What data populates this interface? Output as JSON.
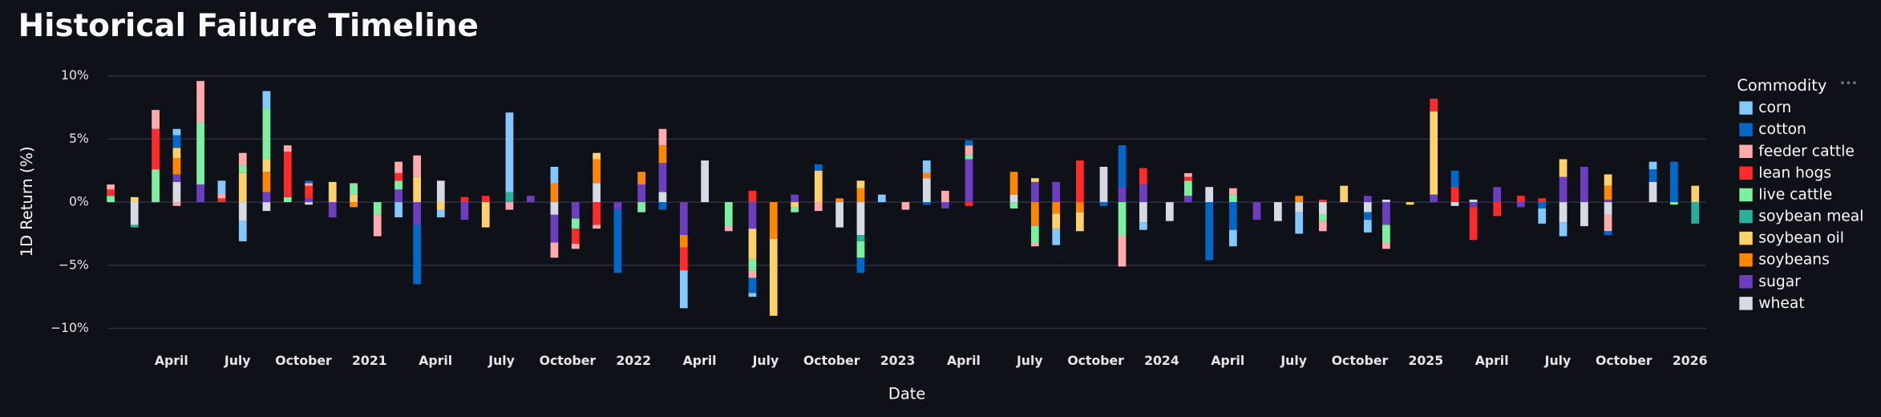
{
  "chart_data": {
    "type": "bar",
    "title": "Historical Failure Timeline",
    "x_label": "Date",
    "y_label": "1D Return (%)",
    "legend_title": "Commodity",
    "legend_position": "right",
    "stacked": true,
    "grid": true,
    "xlim": [
      2020.01,
      2026.06
    ],
    "xticks": [
      {
        "value": 2020.25,
        "label": "April"
      },
      {
        "value": 2020.5,
        "label": "July"
      },
      {
        "value": 2020.75,
        "label": "October"
      },
      2021,
      {
        "value": 2021.25,
        "label": "April"
      },
      {
        "value": 2021.5,
        "label": "July"
      },
      {
        "value": 2021.75,
        "label": "October"
      },
      2022,
      {
        "value": 2022.25,
        "label": "April"
      },
      {
        "value": 2022.5,
        "label": "July"
      },
      {
        "value": 2022.75,
        "label": "October"
      },
      2023,
      {
        "value": 2023.25,
        "label": "April"
      },
      {
        "value": 2023.5,
        "label": "July"
      },
      {
        "value": 2023.75,
        "label": "October"
      },
      2024,
      {
        "value": 2024.25,
        "label": "April"
      },
      {
        "value": 2024.5,
        "label": "July"
      },
      {
        "value": 2024.75,
        "label": "October"
      },
      2025,
      {
        "value": 2025.25,
        "label": "April"
      },
      {
        "value": 2025.5,
        "label": "July"
      },
      {
        "value": 2025.75,
        "label": "October"
      },
      2026
    ],
    "ylim": [
      -10.5,
      10.5
    ],
    "yticks": [
      {
        "value": 10,
        "label": "10%"
      },
      {
        "value": 5,
        "label": "5%"
      },
      {
        "value": 0,
        "label": "0%"
      },
      {
        "value": -5,
        "label": "−5%"
      },
      {
        "value": -10,
        "label": "−10%"
      }
    ],
    "x": [
      2020.02,
      2020.11,
      2020.19,
      2020.27,
      2020.36,
      2020.44,
      2020.52,
      2020.61,
      2020.69,
      2020.77,
      2020.86,
      2020.94,
      2021.03,
      2021.11,
      2021.18,
      2021.27,
      2021.36,
      2021.44,
      2021.53,
      2021.61,
      2021.7,
      2021.78,
      2021.86,
      2021.94,
      2022.03,
      2022.11,
      2022.19,
      2022.27,
      2022.36,
      2022.45,
      2022.53,
      2022.61,
      2022.7,
      2022.78,
      2022.86,
      2022.94,
      2023.03,
      2023.11,
      2023.18,
      2023.27,
      2023.44,
      2023.52,
      2023.6,
      2023.69,
      2023.78,
      2023.85,
      2023.93,
      2024.03,
      2024.1,
      2024.18,
      2024.27,
      2024.36,
      2024.44,
      2024.52,
      2024.61,
      2024.69,
      2024.78,
      2024.85,
      2024.94,
      2025.03,
      2025.11,
      2025.18,
      2025.27,
      2025.36,
      2025.44,
      2025.52,
      2025.6,
      2025.69,
      2025.86,
      2025.94,
      2026.02
    ],
    "series": [
      {
        "name": "corn",
        "color": "#83c9ff",
        "values": [
          null,
          null,
          null,
          0.5,
          null,
          1.0,
          -1.6,
          1.4,
          null,
          null,
          null,
          null,
          null,
          -1.2,
          null,
          -0.6,
          null,
          null,
          6.3,
          null,
          1.3,
          null,
          null,
          null,
          null,
          null,
          -3.0,
          null,
          null,
          -0.3,
          null,
          null,
          null,
          null,
          null,
          0.6,
          null,
          1.0,
          null,
          null,
          null,
          null,
          -1.3,
          null,
          null,
          null,
          -0.6,
          null,
          null,
          null,
          -1.3,
          null,
          null,
          -1.7,
          null,
          null,
          -1.0,
          null,
          null,
          null,
          null,
          null,
          null,
          null,
          -1.2,
          -1.1,
          null,
          null,
          0.6,
          null,
          null
        ]
      },
      {
        "name": "cotton",
        "color": "#0068c9",
        "values": [
          null,
          null,
          null,
          1.0,
          null,
          null,
          null,
          null,
          null,
          0.2,
          null,
          null,
          null,
          null,
          -4.7,
          null,
          null,
          null,
          null,
          null,
          null,
          null,
          null,
          -5.0,
          null,
          -0.6,
          null,
          null,
          null,
          -1.2,
          null,
          null,
          0.5,
          null,
          -1.2,
          null,
          null,
          -0.2,
          null,
          0.4,
          null,
          null,
          null,
          null,
          -0.3,
          3.3,
          null,
          null,
          null,
          -4.6,
          -2.2,
          null,
          null,
          null,
          null,
          null,
          -0.6,
          null,
          null,
          null,
          1.3,
          null,
          null,
          null,
          -0.5,
          null,
          null,
          -0.3,
          1.0,
          3.2,
          null
        ]
      },
      {
        "name": "feeder cattle",
        "color": "#ffabab",
        "values": [
          0.4,
          null,
          1.5,
          -0.3,
          3.3,
          0.4,
          1.0,
          null,
          0.5,
          0.2,
          null,
          0.1,
          -1.7,
          0.9,
          1.7,
          null,
          null,
          null,
          -0.6,
          null,
          -1.2,
          -0.4,
          -0.3,
          null,
          null,
          1.3,
          null,
          null,
          -0.4,
          -0.6,
          null,
          null,
          -0.7,
          null,
          null,
          null,
          -0.6,
          null,
          0.9,
          0.8,
          null,
          -0.3,
          null,
          null,
          null,
          -2.5,
          null,
          null,
          0.3,
          null,
          0.5,
          null,
          null,
          null,
          -0.8,
          null,
          null,
          -0.5,
          null,
          null,
          null,
          null,
          null,
          null,
          null,
          null,
          null,
          -1.3,
          null,
          null,
          null
        ]
      },
      {
        "name": "lean hogs",
        "color": "#ff2b2b",
        "values": [
          0.5,
          null,
          3.2,
          null,
          null,
          0.3,
          null,
          null,
          3.6,
          1.0,
          null,
          null,
          null,
          0.6,
          null,
          null,
          0.4,
          0.5,
          null,
          null,
          null,
          -1.2,
          -1.8,
          null,
          null,
          null,
          -1.8,
          null,
          null,
          0.9,
          null,
          null,
          null,
          null,
          null,
          null,
          null,
          null,
          null,
          -0.3,
          null,
          null,
          null,
          3.3,
          null,
          null,
          1.3,
          null,
          0.3,
          null,
          null,
          null,
          null,
          null,
          0.2,
          null,
          null,
          null,
          null,
          1.0,
          1.2,
          -2.6,
          -1.1,
          0.5,
          0.3,
          null,
          null,
          null,
          null,
          null,
          null
        ]
      },
      {
        "name": "live cattle",
        "color": "#7defa1",
        "values": [
          0.5,
          null,
          2.6,
          null,
          4.9,
          null,
          0.6,
          4.0,
          0.4,
          null,
          null,
          0.8,
          -1.0,
          0.7,
          null,
          null,
          null,
          null,
          null,
          null,
          null,
          -0.8,
          null,
          null,
          -0.8,
          null,
          null,
          null,
          -1.9,
          -0.9,
          null,
          -0.4,
          null,
          null,
          -1.3,
          null,
          null,
          null,
          null,
          0.3,
          -0.5,
          -1.3,
          null,
          null,
          null,
          -2.6,
          null,
          null,
          1.2,
          null,
          0.6,
          null,
          null,
          null,
          -0.5,
          null,
          null,
          -1.4,
          null,
          null,
          null,
          null,
          null,
          null,
          null,
          null,
          null,
          null,
          null,
          -0.2,
          null
        ]
      },
      {
        "name": "soybean meal",
        "color": "#29b09d",
        "values": [
          null,
          -0.2,
          null,
          null,
          null,
          null,
          null,
          null,
          null,
          null,
          null,
          null,
          null,
          null,
          null,
          null,
          null,
          null,
          0.8,
          null,
          null,
          null,
          null,
          null,
          null,
          null,
          null,
          null,
          null,
          null,
          null,
          null,
          null,
          null,
          -0.5,
          null,
          null,
          null,
          null,
          null,
          null,
          null,
          null,
          null,
          null,
          null,
          null,
          null,
          null,
          null,
          null,
          null,
          null,
          null,
          null,
          null,
          null,
          null,
          null,
          null,
          null,
          null,
          null,
          null,
          null,
          null,
          null,
          null,
          null,
          null,
          -1.7
        ]
      },
      {
        "name": "soybean oil",
        "color": "#ffd16a",
        "values": [
          null,
          0.4,
          null,
          0.8,
          null,
          null,
          2.3,
          1.0,
          null,
          null,
          1.6,
          0.6,
          null,
          null,
          2.0,
          -0.6,
          null,
          -2.0,
          null,
          null,
          null,
          null,
          0.5,
          null,
          null,
          null,
          null,
          null,
          null,
          -2.4,
          -6.1,
          -0.4,
          2.5,
          null,
          0.6,
          null,
          null,
          null,
          null,
          null,
          null,
          0.3,
          -1.2,
          -1.5,
          null,
          null,
          null,
          null,
          null,
          null,
          null,
          null,
          null,
          null,
          null,
          1.3,
          null,
          null,
          -0.2,
          6.6,
          null,
          null,
          null,
          null,
          null,
          1.4,
          null,
          0.9,
          null,
          null,
          1.3
        ]
      },
      {
        "name": "soybeans",
        "color": "#ff8700",
        "values": [
          null,
          null,
          null,
          1.3,
          null,
          null,
          null,
          1.6,
          null,
          null,
          null,
          -0.4,
          null,
          null,
          null,
          null,
          null,
          null,
          null,
          null,
          1.5,
          null,
          1.9,
          null,
          1.0,
          1.4,
          -1.0,
          null,
          null,
          null,
          -2.9,
          null,
          null,
          0.3,
          1.1,
          null,
          null,
          0.4,
          null,
          null,
          1.8,
          -1.9,
          -0.9,
          -0.8,
          null,
          null,
          null,
          null,
          null,
          null,
          null,
          null,
          null,
          0.5,
          null,
          null,
          null,
          null,
          null,
          null,
          null,
          null,
          null,
          null,
          null,
          null,
          null,
          1.1,
          null,
          null,
          null
        ]
      },
      {
        "name": "sugar",
        "color": "#6d3fc0",
        "values": [
          null,
          null,
          null,
          0.6,
          1.4,
          null,
          null,
          0.8,
          null,
          0.3,
          -1.2,
          null,
          null,
          1.0,
          -1.8,
          null,
          -1.4,
          null,
          null,
          0.5,
          -2.2,
          -1.3,
          null,
          -0.6,
          1.4,
          2.3,
          -2.6,
          null,
          null,
          -2.1,
          null,
          0.6,
          null,
          null,
          null,
          null,
          null,
          null,
          -0.5,
          3.4,
          null,
          1.6,
          1.6,
          null,
          null,
          1.2,
          1.4,
          null,
          0.5,
          null,
          null,
          -1.4,
          null,
          null,
          null,
          null,
          0.5,
          -1.8,
          null,
          0.6,
          null,
          -0.4,
          1.2,
          -0.4,
          null,
          2.0,
          2.8,
          0.2,
          null,
          null,
          null
        ]
      },
      {
        "name": "wheat",
        "color": "#d5dae5",
        "values": [
          null,
          -1.8,
          null,
          1.6,
          null,
          null,
          -1.5,
          -0.7,
          null,
          -0.2,
          null,
          null,
          null,
          null,
          null,
          1.7,
          null,
          null,
          null,
          null,
          -1.0,
          null,
          1.5,
          null,
          null,
          0.8,
          null,
          3.3,
          null,
          null,
          null,
          null,
          null,
          -2.0,
          -2.6,
          null,
          null,
          1.9,
          null,
          null,
          0.6,
          null,
          null,
          null,
          2.8,
          null,
          -1.6,
          -1.5,
          null,
          1.2,
          null,
          null,
          -1.5,
          -0.8,
          -1.0,
          null,
          -0.8,
          0.2,
          null,
          null,
          -0.3,
          0.2,
          null,
          null,
          null,
          -1.6,
          -1.9,
          -1.0,
          1.6,
          null,
          null
        ]
      }
    ]
  }
}
